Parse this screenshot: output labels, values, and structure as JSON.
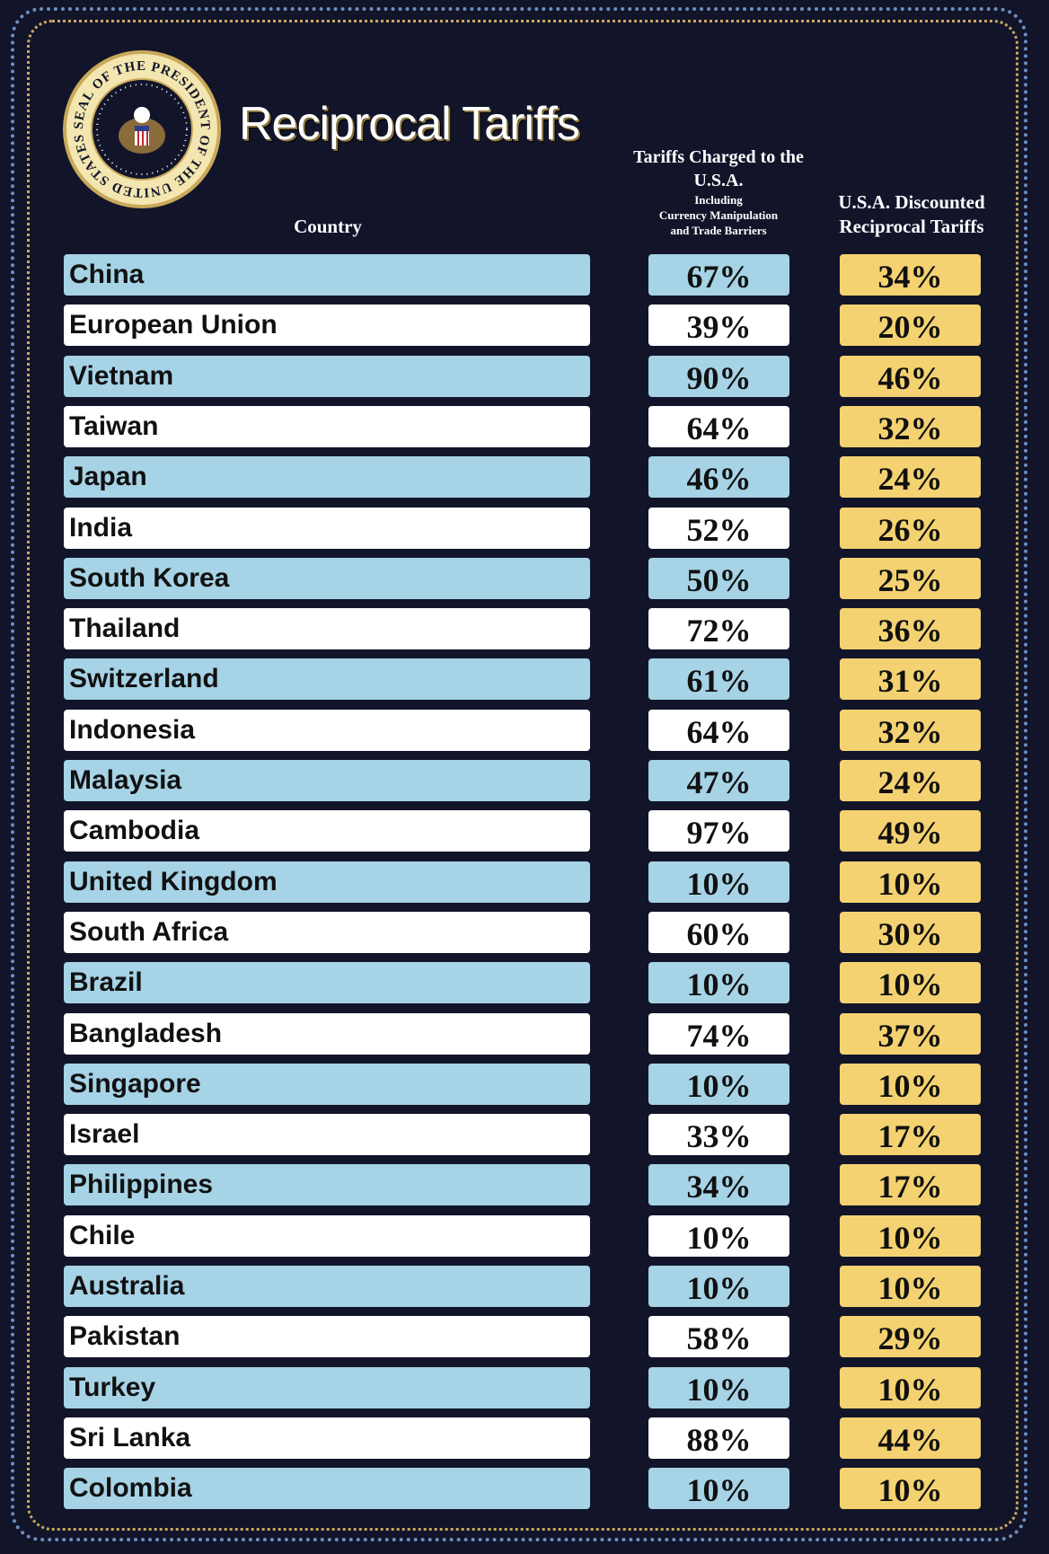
{
  "header": {
    "title": "Reciprocal Tariffs",
    "seal_text": "SEAL OF THE PRESIDENT OF THE UNITED STATES",
    "col_country": "Country",
    "col_charged_main": "Tariffs Charged to the U.S.A.",
    "col_charged_sub1": "Including",
    "col_charged_sub2": "Currency Manipulation",
    "col_charged_sub3": "and Trade Barriers",
    "col_discounted_line1": "U.S.A. Discounted",
    "col_discounted_line2": "Reciprocal Tariffs"
  },
  "colors": {
    "background": "#12152a",
    "row_blue": "#a6d3e6",
    "row_white": "#ffffff",
    "discount_gold": "#f4d271"
  },
  "rows": [
    {
      "country": "China",
      "charged": "67%",
      "discounted": "34%"
    },
    {
      "country": "European Union",
      "charged": "39%",
      "discounted": "20%"
    },
    {
      "country": "Vietnam",
      "charged": "90%",
      "discounted": "46%"
    },
    {
      "country": "Taiwan",
      "charged": "64%",
      "discounted": "32%"
    },
    {
      "country": "Japan",
      "charged": "46%",
      "discounted": "24%"
    },
    {
      "country": "India",
      "charged": "52%",
      "discounted": "26%"
    },
    {
      "country": "South Korea",
      "charged": "50%",
      "discounted": "25%"
    },
    {
      "country": "Thailand",
      "charged": "72%",
      "discounted": "36%"
    },
    {
      "country": "Switzerland",
      "charged": "61%",
      "discounted": "31%"
    },
    {
      "country": "Indonesia",
      "charged": "64%",
      "discounted": "32%"
    },
    {
      "country": "Malaysia",
      "charged": "47%",
      "discounted": "24%"
    },
    {
      "country": "Cambodia",
      "charged": "97%",
      "discounted": "49%"
    },
    {
      "country": "United Kingdom",
      "charged": "10%",
      "discounted": "10%"
    },
    {
      "country": "South Africa",
      "charged": "60%",
      "discounted": "30%"
    },
    {
      "country": "Brazil",
      "charged": "10%",
      "discounted": "10%"
    },
    {
      "country": "Bangladesh",
      "charged": "74%",
      "discounted": "37%"
    },
    {
      "country": "Singapore",
      "charged": "10%",
      "discounted": "10%"
    },
    {
      "country": "Israel",
      "charged": "33%",
      "discounted": "17%"
    },
    {
      "country": "Philippines",
      "charged": "34%",
      "discounted": "17%"
    },
    {
      "country": "Chile",
      "charged": "10%",
      "discounted": "10%"
    },
    {
      "country": "Australia",
      "charged": "10%",
      "discounted": "10%"
    },
    {
      "country": "Pakistan",
      "charged": "58%",
      "discounted": "29%"
    },
    {
      "country": "Turkey",
      "charged": "10%",
      "discounted": "10%"
    },
    {
      "country": "Sri Lanka",
      "charged": "88%",
      "discounted": "44%"
    },
    {
      "country": "Colombia",
      "charged": "10%",
      "discounted": "10%"
    }
  ]
}
